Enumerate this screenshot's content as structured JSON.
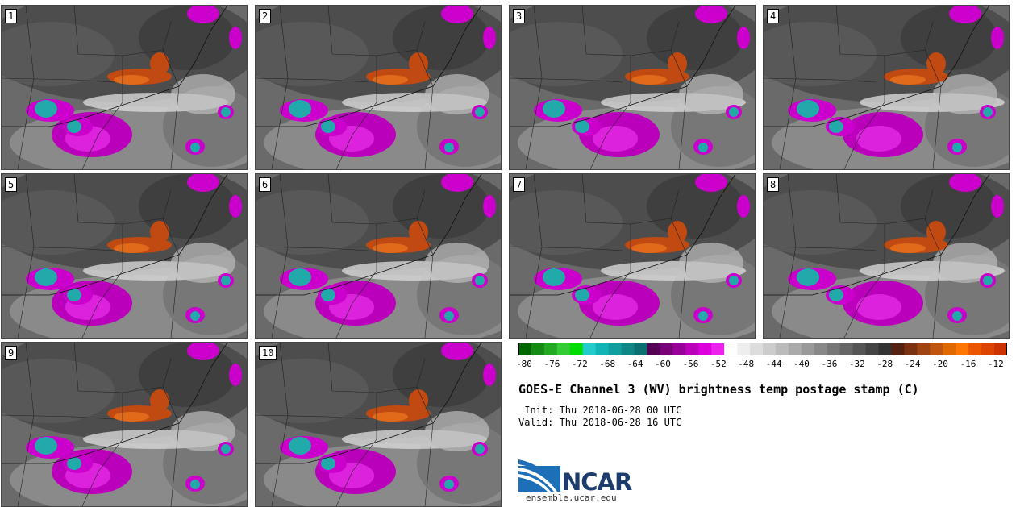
{
  "panels": [
    {
      "label": "1"
    },
    {
      "label": "2"
    },
    {
      "label": "3"
    },
    {
      "label": "4"
    },
    {
      "label": "5"
    },
    {
      "label": "6"
    },
    {
      "label": "7"
    },
    {
      "label": "8"
    },
    {
      "label": "9"
    },
    {
      "label": "10"
    }
  ],
  "colorbar": {
    "colors": [
      "#006600",
      "#168a16",
      "#22aa22",
      "#33cc33",
      "#00dd00",
      "#22cccc",
      "#11b5b5",
      "#119e9e",
      "#108787",
      "#0b7070",
      "#550055",
      "#770077",
      "#990099",
      "#bb00bb",
      "#dd00dd",
      "#ee22ee",
      "#ffffff",
      "#eeeeee",
      "#dddddd",
      "#cccccc",
      "#bbbbbb",
      "#aaaaaa",
      "#999999",
      "#888888",
      "#777777",
      "#666666",
      "#555555",
      "#444444",
      "#333333",
      "#552211",
      "#7a3312",
      "#a04416",
      "#c05510",
      "#e06a00",
      "#ff7700",
      "#ee5500",
      "#dd4400",
      "#cc3300"
    ],
    "ticks": [
      "-80",
      "-76",
      "-72",
      "-68",
      "-64",
      "-60",
      "-56",
      "-52",
      "-48",
      "-44",
      "-40",
      "-36",
      "-32",
      "-28",
      "-24",
      "-20",
      "-16",
      "-12"
    ]
  },
  "title": "GOES-E Channel 3 (WV) brightness temp postage stamp (C)",
  "init_line": " Init: Thu 2018-06-28 00 UTC",
  "valid_line": "Valid: Thu 2018-06-28 16 UTC",
  "logo_text": "NCAR",
  "logo_url": "ensemble.ucar.edu"
}
